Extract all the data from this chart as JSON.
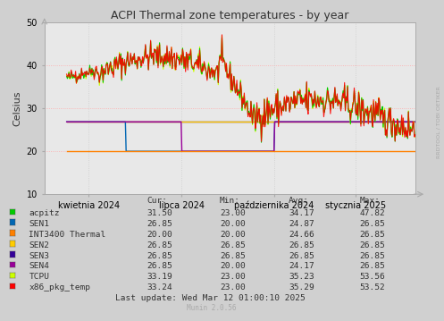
{
  "title": "ACPI Thermal zone temperatures - by year",
  "ylabel": "Celsius",
  "bg_color": "#d0d0d0",
  "plot_bg_color": "#e8e8e8",
  "ylim": [
    10,
    50
  ],
  "yticks": [
    10,
    20,
    30,
    40,
    50
  ],
  "watermark": "RRDTOOL / TOBI OETIKER",
  "munin_version": "Munin 2.0.56",
  "last_update": "Last update: Wed Mar 12 01:00:10 2025",
  "x_tick_labels": [
    "kwietnia 2024",
    "lipca 2024",
    "października 2024",
    "stycznia 2025"
  ],
  "x_tick_pos": [
    0.12,
    0.37,
    0.62,
    0.84
  ],
  "legend_entries": [
    {
      "label": "acpitz",
      "color": "#00cc00",
      "cur": "31.50",
      "min": "23.00",
      "avg": "34.17",
      "max": "47.82"
    },
    {
      "label": "SEN1",
      "color": "#0066b3",
      "cur": "26.85",
      "min": "20.00",
      "avg": "24.87",
      "max": "26.85"
    },
    {
      "label": "INT3400 Thermal",
      "color": "#ff8000",
      "cur": "20.00",
      "min": "20.00",
      "avg": "24.66",
      "max": "26.85"
    },
    {
      "label": "SEN2",
      "color": "#ffcc00",
      "cur": "26.85",
      "min": "26.85",
      "avg": "26.85",
      "max": "26.85"
    },
    {
      "label": "SEN3",
      "color": "#330099",
      "cur": "26.85",
      "min": "26.85",
      "avg": "26.85",
      "max": "26.85"
    },
    {
      "label": "SEN4",
      "color": "#990099",
      "cur": "26.85",
      "min": "20.00",
      "avg": "24.17",
      "max": "26.85"
    },
    {
      "label": "TCPU",
      "color": "#ccff00",
      "cur": "33.19",
      "min": "23.00",
      "avg": "35.23",
      "max": "53.56"
    },
    {
      "label": "x86_pkg_temp",
      "color": "#ff0000",
      "cur": "33.24",
      "min": "23.00",
      "avg": "35.29",
      "max": "53.52"
    }
  ],
  "col_headers": [
    "Cur:",
    "Min:",
    "Avg:",
    "Max:"
  ]
}
